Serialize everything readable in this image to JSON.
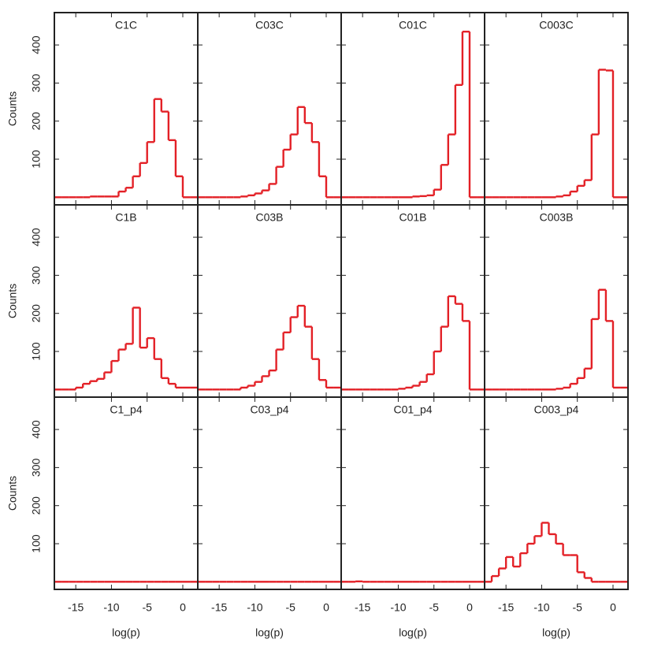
{
  "chart_data": [
    {
      "type": "histogram",
      "title": "C1C",
      "ylabel": "Counts",
      "color": "#e32026",
      "bins": [
        -18,
        -17,
        -16,
        -15,
        -14,
        -13,
        -12,
        -11,
        -10,
        -9,
        -8,
        -7,
        -6,
        -5,
        -4,
        -3,
        -2,
        -1,
        0,
        1,
        2
      ],
      "counts": [
        0,
        0,
        0,
        0,
        0,
        2,
        2,
        2,
        2,
        15,
        25,
        55,
        90,
        145,
        258,
        225,
        150,
        55,
        0,
        0
      ],
      "xlim": [
        -18,
        2.1
      ],
      "ylim": [
        -20,
        485
      ],
      "xticks": [
        -15,
        -10,
        -5,
        0
      ],
      "yticks": [
        100,
        200,
        300,
        400
      ]
    },
    {
      "type": "histogram",
      "title": "C03C",
      "color": "#e32026",
      "bins": [
        -18,
        -17,
        -16,
        -15,
        -14,
        -13,
        -12,
        -11,
        -10,
        -9,
        -8,
        -7,
        -6,
        -5,
        -4,
        -3,
        -2,
        -1,
        0,
        1,
        2
      ],
      "counts": [
        0,
        0,
        0,
        0,
        0,
        0,
        2,
        5,
        10,
        18,
        35,
        80,
        125,
        165,
        237,
        195,
        145,
        55,
        0,
        0
      ],
      "xlim": [
        -18,
        2.1
      ],
      "ylim": [
        -20,
        485
      ],
      "xticks": [
        -15,
        -10,
        -5,
        0
      ],
      "yticks": [
        100,
        200,
        300,
        400
      ]
    },
    {
      "type": "histogram",
      "title": "C01C",
      "color": "#e32026",
      "bins": [
        -18,
        -17,
        -16,
        -15,
        -14,
        -13,
        -12,
        -11,
        -10,
        -9,
        -8,
        -7,
        -6,
        -5,
        -4,
        -3,
        -2,
        -1,
        0,
        1,
        2
      ],
      "counts": [
        0,
        0,
        0,
        0,
        0,
        0,
        0,
        0,
        0,
        0,
        2,
        3,
        5,
        20,
        85,
        165,
        295,
        435,
        0,
        0
      ],
      "xlim": [
        -18,
        2.1
      ],
      "ylim": [
        -20,
        485
      ],
      "xticks": [
        -15,
        -10,
        -5,
        0
      ],
      "yticks": [
        100,
        200,
        300,
        400
      ]
    },
    {
      "type": "histogram",
      "title": "C003C",
      "color": "#e32026",
      "bins": [
        -18,
        -17,
        -16,
        -15,
        -14,
        -13,
        -12,
        -11,
        -10,
        -9,
        -8,
        -7,
        -6,
        -5,
        -4,
        -3,
        -2,
        -1,
        0,
        1,
        2
      ],
      "counts": [
        0,
        0,
        0,
        0,
        0,
        0,
        0,
        0,
        0,
        0,
        2,
        5,
        15,
        30,
        45,
        165,
        335,
        333,
        0,
        0
      ],
      "xlim": [
        -18,
        2.1
      ],
      "ylim": [
        -20,
        485
      ],
      "xticks": [
        -15,
        -10,
        -5,
        0
      ],
      "yticks": [
        100,
        200,
        300,
        400
      ]
    },
    {
      "type": "histogram",
      "title": "C1B",
      "ylabel": "Counts",
      "color": "#e32026",
      "bins": [
        -18,
        -17,
        -16,
        -15,
        -14,
        -13,
        -12,
        -11,
        -10,
        -9,
        -8,
        -7,
        -6,
        -5,
        -4,
        -3,
        -2,
        -1,
        0,
        1,
        2
      ],
      "counts": [
        0,
        0,
        0,
        5,
        15,
        22,
        28,
        45,
        75,
        105,
        120,
        215,
        110,
        135,
        80,
        30,
        15,
        5,
        5,
        5
      ],
      "xlim": [
        -18,
        2.1
      ],
      "ylim": [
        -20,
        485
      ],
      "xticks": [
        -15,
        -10,
        -5,
        0
      ],
      "yticks": [
        100,
        200,
        300,
        400
      ]
    },
    {
      "type": "histogram",
      "title": "C03B",
      "color": "#e32026",
      "bins": [
        -18,
        -17,
        -16,
        -15,
        -14,
        -13,
        -12,
        -11,
        -10,
        -9,
        -8,
        -7,
        -6,
        -5,
        -4,
        -3,
        -2,
        -1,
        0,
        1,
        2
      ],
      "counts": [
        0,
        0,
        0,
        0,
        0,
        0,
        5,
        10,
        20,
        35,
        50,
        105,
        150,
        190,
        220,
        165,
        80,
        25,
        5,
        5
      ],
      "xlim": [
        -18,
        2.1
      ],
      "ylim": [
        -20,
        485
      ],
      "xticks": [
        -15,
        -10,
        -5,
        0
      ],
      "yticks": [
        100,
        200,
        300,
        400
      ]
    },
    {
      "type": "histogram",
      "title": "C01B",
      "color": "#e32026",
      "bins": [
        -18,
        -17,
        -16,
        -15,
        -14,
        -13,
        -12,
        -11,
        -10,
        -9,
        -8,
        -7,
        -6,
        -5,
        -4,
        -3,
        -2,
        -1,
        0,
        1,
        2
      ],
      "counts": [
        0,
        0,
        0,
        0,
        0,
        0,
        0,
        0,
        2,
        5,
        10,
        20,
        40,
        100,
        165,
        245,
        225,
        180,
        0,
        0
      ],
      "xlim": [
        -18,
        2.1
      ],
      "ylim": [
        -20,
        485
      ],
      "xticks": [
        -15,
        -10,
        -5,
        0
      ],
      "yticks": [
        100,
        200,
        300,
        400
      ]
    },
    {
      "type": "histogram",
      "title": "C003B",
      "color": "#e32026",
      "bins": [
        -18,
        -17,
        -16,
        -15,
        -14,
        -13,
        -12,
        -11,
        -10,
        -9,
        -8,
        -7,
        -6,
        -5,
        -4,
        -3,
        -2,
        -1,
        0,
        1,
        2
      ],
      "counts": [
        0,
        0,
        0,
        0,
        0,
        0,
        0,
        0,
        0,
        0,
        2,
        5,
        15,
        30,
        55,
        185,
        262,
        180,
        5,
        5
      ],
      "xlim": [
        -18,
        2.1
      ],
      "ylim": [
        -20,
        485
      ],
      "xticks": [
        -15,
        -10,
        -5,
        0
      ],
      "yticks": [
        100,
        200,
        300,
        400
      ]
    },
    {
      "type": "histogram",
      "title": "C1_p4",
      "ylabel": "Counts",
      "xlabel": "log(p)",
      "color": "#e32026",
      "bins": [
        -18,
        -17,
        -16,
        -15,
        -14,
        -13,
        -12,
        -11,
        -10,
        -9,
        -8,
        -7,
        -6,
        -5,
        -4,
        -3,
        -2,
        -1,
        0,
        1,
        2
      ],
      "counts": [
        0,
        0,
        0,
        0,
        0,
        0,
        0,
        0,
        0,
        0,
        0,
        0,
        0,
        0,
        0,
        0,
        0,
        0,
        0,
        0
      ],
      "xlim": [
        -18,
        2.1
      ],
      "ylim": [
        -20,
        485
      ],
      "xticks": [
        -15,
        -10,
        -5,
        0
      ],
      "yticks": [
        100,
        200,
        300,
        400
      ]
    },
    {
      "type": "histogram",
      "title": "C03_p4",
      "xlabel": "log(p)",
      "color": "#e32026",
      "bins": [
        -18,
        -17,
        -16,
        -15,
        -14,
        -13,
        -12,
        -11,
        -10,
        -9,
        -8,
        -7,
        -6,
        -5,
        -4,
        -3,
        -2,
        -1,
        0,
        1,
        2
      ],
      "counts": [
        0,
        0,
        0,
        0,
        0,
        0,
        0,
        0,
        0,
        0,
        0,
        0,
        0,
        0,
        0,
        0,
        0,
        0,
        0,
        0
      ],
      "xlim": [
        -18,
        2.1
      ],
      "ylim": [
        -20,
        485
      ],
      "xticks": [
        -15,
        -10,
        -5,
        0
      ],
      "yticks": [
        100,
        200,
        300,
        400
      ]
    },
    {
      "type": "histogram",
      "title": "C01_p4",
      "xlabel": "log(p)",
      "color": "#e32026",
      "bins": [
        -18,
        -17,
        -16,
        -15,
        -14,
        -13,
        -12,
        -11,
        -10,
        -9,
        -8,
        -7,
        -6,
        -5,
        -4,
        -3,
        -2,
        -1,
        0,
        1,
        2
      ],
      "counts": [
        0,
        0,
        1,
        0,
        0,
        0,
        0,
        0,
        0,
        0,
        0,
        0,
        0,
        0,
        0,
        0,
        0,
        0,
        0,
        0
      ],
      "xlim": [
        -18,
        2.1
      ],
      "ylim": [
        -20,
        485
      ],
      "xticks": [
        -15,
        -10,
        -5,
        0
      ],
      "yticks": [
        100,
        200,
        300,
        400
      ]
    },
    {
      "type": "histogram",
      "title": "C003_p4",
      "xlabel": "log(p)",
      "color": "#e32026",
      "bins": [
        -18,
        -17,
        -16,
        -15,
        -14,
        -13,
        -12,
        -11,
        -10,
        -9,
        -8,
        -7,
        -6,
        -5,
        -4,
        -3,
        -2,
        -1,
        0,
        1,
        2
      ],
      "counts": [
        0,
        15,
        35,
        65,
        40,
        75,
        100,
        120,
        155,
        125,
        100,
        70,
        70,
        25,
        10,
        0,
        0,
        0,
        0,
        0
      ],
      "xlim": [
        -18,
        2.1
      ],
      "ylim": [
        -20,
        485
      ],
      "xticks": [
        -15,
        -10,
        -5,
        0
      ],
      "yticks": [
        100,
        200,
        300,
        400
      ]
    }
  ]
}
